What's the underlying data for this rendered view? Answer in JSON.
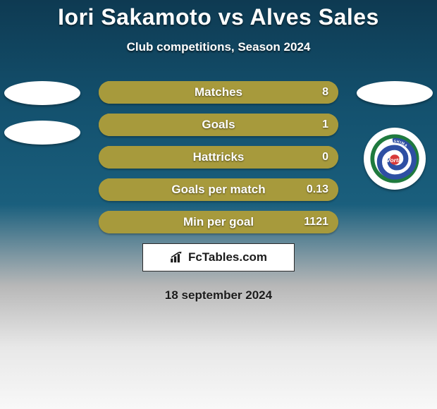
{
  "title": "Iori Sakamoto vs Alves Sales",
  "subtitle": "Club competitions, Season 2024",
  "date": "18 september 2024",
  "brand": {
    "text": "FcTables.com"
  },
  "colors": {
    "left_fill": "#a79a3c",
    "right_fill": "#a79a3c",
    "bar_bg": "#a79a3c",
    "title_text": "#ffffff"
  },
  "badges": {
    "left": [
      {
        "type": "oval",
        "name": "team-left-badge-1"
      },
      {
        "type": "oval",
        "name": "team-left-badge-2"
      }
    ],
    "right": [
      {
        "type": "oval",
        "name": "team-right-badge-1"
      },
      {
        "type": "circle",
        "name": "tokushima-vortis-badge"
      }
    ]
  },
  "vortis_logo": {
    "ring_color": "#1f7a3e",
    "swirl_color": "#2e4fa3",
    "center_color": "#d83a3a",
    "text": "Vortis",
    "arc_text": "TOKUSHIMA"
  },
  "stats": [
    {
      "label": "Matches",
      "left_value": "",
      "right_value": "8",
      "left_fill_pct": 42,
      "right_fill_pct": 100
    },
    {
      "label": "Goals",
      "left_value": "",
      "right_value": "1",
      "left_fill_pct": 48,
      "right_fill_pct": 100
    },
    {
      "label": "Hattricks",
      "left_value": "",
      "right_value": "0",
      "left_fill_pct": 50,
      "right_fill_pct": 100
    },
    {
      "label": "Goals per match",
      "left_value": "",
      "right_value": "0.13",
      "left_fill_pct": 50,
      "right_fill_pct": 100
    },
    {
      "label": "Min per goal",
      "left_value": "",
      "right_value": "1121",
      "left_fill_pct": 50,
      "right_fill_pct": 100
    }
  ],
  "typography": {
    "title_fontsize": 32,
    "subtitle_fontsize": 17,
    "bar_label_fontsize": 17,
    "bar_value_fontsize": 16,
    "date_fontsize": 17
  }
}
